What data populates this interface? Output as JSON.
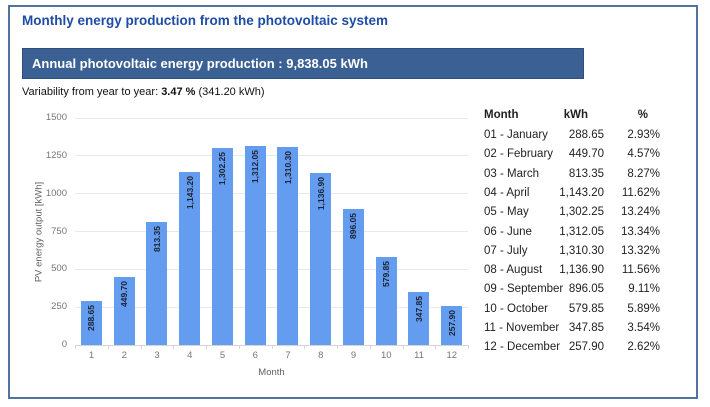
{
  "page": {
    "title": "Monthly energy production from the photovoltaic system",
    "banner": "Annual photovoltaic energy production : 9,838.05 kWh",
    "variability": {
      "prefix": "Variability from year to year: ",
      "value": "3.47 %",
      "suffix": " (341.20 kWh)"
    }
  },
  "colors": {
    "page_border": "#4f74a0",
    "banner_bg": "#3b6093",
    "banner_border": "#2d4f7e",
    "banner_text": "#ffffff",
    "title_text": "#1e4ca6",
    "bar_fill": "#649df0",
    "bar_label": "#1c2333",
    "axis_text": "#757575",
    "axis_title_text": "#616161",
    "gridline": "#e9e9e9",
    "axis_line": "#d4d4d4",
    "table_text": "#1f1f1f"
  },
  "chart_data": {
    "type": "bar",
    "title": "",
    "xlabel": "Month",
    "ylabel": "PV energy output [kWh]",
    "ylim": [
      0,
      1500
    ],
    "y_ticks": [
      0,
      250,
      500,
      750,
      1000,
      1250,
      1500
    ],
    "grid": true,
    "legend": "none",
    "categories": [
      "1",
      "2",
      "3",
      "4",
      "5",
      "6",
      "7",
      "8",
      "9",
      "10",
      "11",
      "12"
    ],
    "values": [
      288.65,
      449.7,
      813.35,
      1143.2,
      1302.25,
      1312.05,
      1310.3,
      1136.9,
      896.05,
      579.85,
      347.85,
      257.9
    ],
    "bar_labels": [
      "288.65",
      "449.70",
      "813.35",
      "1,143.20",
      "1,302.25",
      "1,312.05",
      "1,310.30",
      "1,136.90",
      "896.05",
      "579.85",
      "347.85",
      "257.90"
    ]
  },
  "table": {
    "headers": [
      "Month",
      "kWh",
      "%"
    ],
    "rows": [
      {
        "month": "01 - January",
        "kwh": "288.65",
        "pct": "2.93%"
      },
      {
        "month": "02 - February",
        "kwh": "449.70",
        "pct": "4.57%"
      },
      {
        "month": "03 - March",
        "kwh": "813.35",
        "pct": "8.27%"
      },
      {
        "month": "04 - April",
        "kwh": "1,143.20",
        "pct": "11.62%"
      },
      {
        "month": "05 - May",
        "kwh": "1,302.25",
        "pct": "13.24%"
      },
      {
        "month": "06 - June",
        "kwh": "1,312.05",
        "pct": "13.34%"
      },
      {
        "month": "07 - July",
        "kwh": "1,310.30",
        "pct": "13.32%"
      },
      {
        "month": "08 - August",
        "kwh": "1,136.90",
        "pct": "11.56%"
      },
      {
        "month": "09 - September",
        "kwh": "896.05",
        "pct": "9.11%"
      },
      {
        "month": "10 - October",
        "kwh": "579.85",
        "pct": "5.89%"
      },
      {
        "month": "11 - November",
        "kwh": "347.85",
        "pct": "3.54%"
      },
      {
        "month": "12 - December",
        "kwh": "257.90",
        "pct": "2.62%"
      }
    ]
  }
}
